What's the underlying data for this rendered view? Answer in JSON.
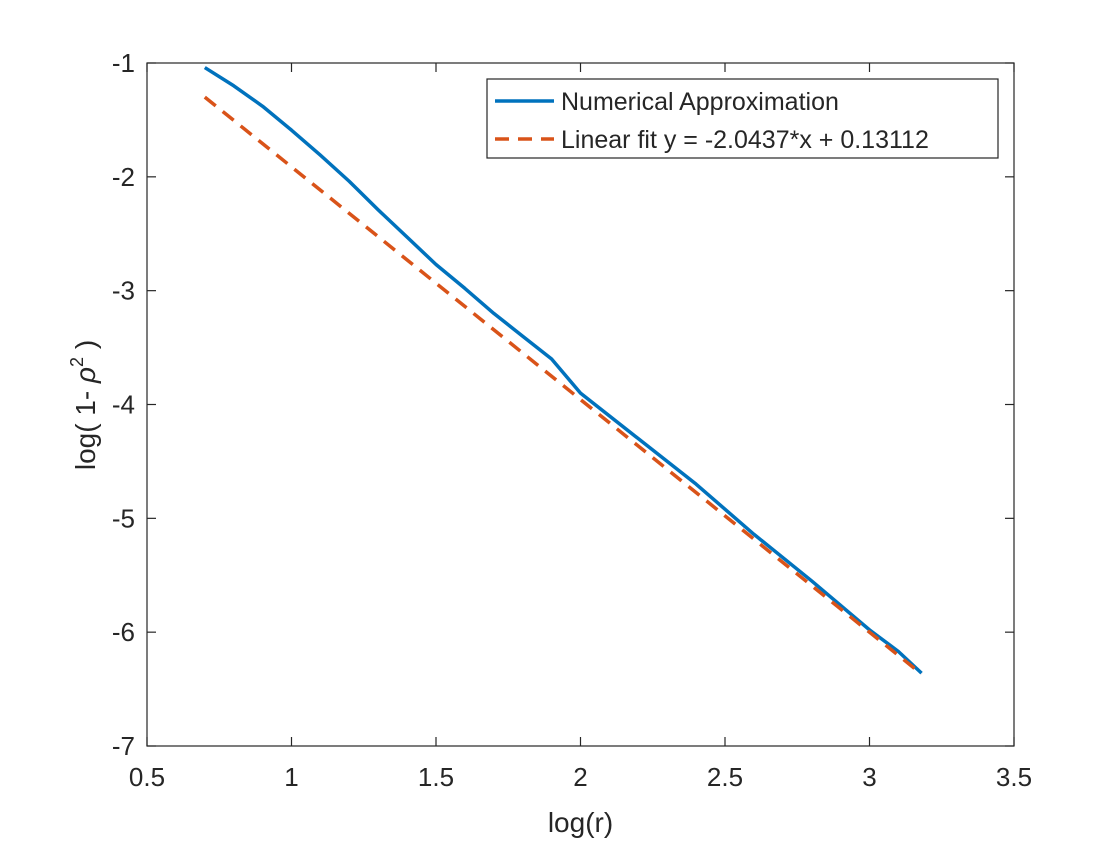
{
  "chart_data": {
    "type": "line",
    "title": "",
    "xlabel": "log(r)",
    "ylabel": {
      "prefix": "log( 1- ",
      "rho": "ρ",
      "power": "2",
      "suffix": " )"
    },
    "xlim": [
      0.5,
      3.5
    ],
    "ylim": [
      -7,
      -1
    ],
    "xticks": [
      0.5,
      1,
      1.5,
      2,
      2.5,
      3,
      3.5
    ],
    "xtick_labels": [
      "0.5",
      "1",
      "1.5",
      "2",
      "2.5",
      "3",
      "3.5"
    ],
    "yticks": [
      -7,
      -6,
      -5,
      -4,
      -3,
      -2,
      -1
    ],
    "ytick_labels": [
      "-7",
      "-6",
      "-5",
      "-4",
      "-3",
      "-2",
      "-1"
    ],
    "grid": false,
    "legend_position": "top-right",
    "series": [
      {
        "name": "Numerical Approximation",
        "color": "#0072BD",
        "style": "solid",
        "x": [
          0.7,
          0.8,
          0.9,
          1.0,
          1.1,
          1.2,
          1.3,
          1.4,
          1.5,
          1.6,
          1.7,
          1.8,
          1.9,
          2.0,
          2.2,
          2.4,
          2.6,
          2.8,
          3.0,
          3.1,
          3.18
        ],
        "y": [
          -1.04,
          -1.2,
          -1.38,
          -1.59,
          -1.81,
          -2.04,
          -2.29,
          -2.53,
          -2.77,
          -2.98,
          -3.2,
          -3.4,
          -3.6,
          -3.9,
          -4.3,
          -4.7,
          -5.14,
          -5.55,
          -5.98,
          -6.17,
          -6.36
        ]
      },
      {
        "name": "Linear fit y = -2.0437*x + 0.13112",
        "color": "#D95319",
        "style": "dashed",
        "slope": -2.0437,
        "intercept": 0.13112,
        "x": [
          0.7,
          3.18
        ],
        "y": [
          -1.2995,
          -6.3679
        ]
      }
    ]
  }
}
